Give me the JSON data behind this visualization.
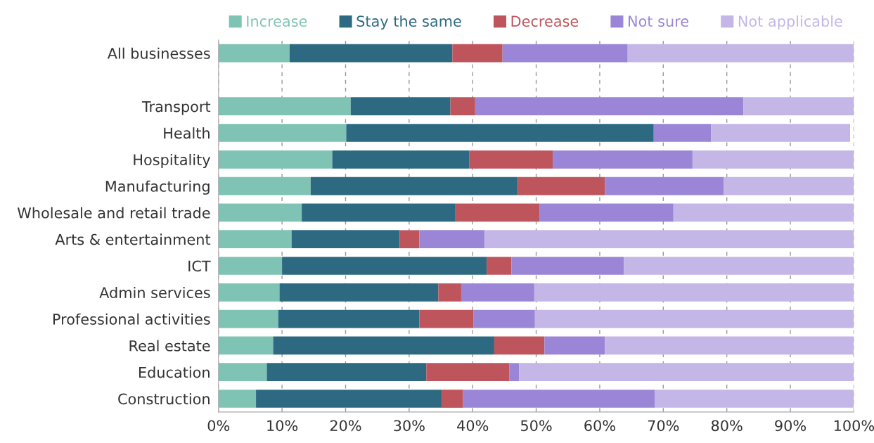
{
  "chart_data": {
    "type": "bar",
    "orientation": "horizontal",
    "stacked": true,
    "categories": [
      "All businesses",
      null,
      "Transport",
      "Health",
      "Hospitality",
      "Manufacturing",
      "Wholesale and retail trade",
      "Arts & entertainment",
      "ICT",
      "Admin services",
      "Professional activities",
      "Real estate",
      "Education",
      "Construction"
    ],
    "series": [
      {
        "name": "Increase",
        "color": "#7fc3b4",
        "values": [
          11.2,
          null,
          20.8,
          20.1,
          17.9,
          14.5,
          13.1,
          11.5,
          10.0,
          9.6,
          9.4,
          8.6,
          7.6,
          5.9
        ]
      },
      {
        "name": "Stay the same",
        "color": "#2d6a82",
        "values": [
          25.6,
          null,
          15.7,
          48.4,
          21.6,
          32.6,
          24.2,
          17.0,
          32.2,
          25.0,
          22.2,
          34.8,
          25.1,
          29.2
        ]
      },
      {
        "name": "Decrease",
        "color": "#bf555c",
        "values": [
          7.9,
          null,
          3.9,
          0,
          13.1,
          13.7,
          13.2,
          3.1,
          3.9,
          3.6,
          8.5,
          7.9,
          13.1,
          3.4
        ]
      },
      {
        "name": "Not sure",
        "color": "#9b85d6",
        "values": [
          19.7,
          null,
          42.2,
          9.0,
          22.0,
          18.7,
          21.1,
          10.3,
          17.7,
          11.5,
          9.7,
          9.5,
          1.5,
          30.2
        ]
      },
      {
        "name": "Not applicable",
        "color": "#c4b6e7",
        "values": [
          35.6,
          null,
          17.4,
          21.9,
          25.4,
          20.5,
          28.4,
          58.1,
          36.2,
          50.3,
          50.2,
          39.2,
          52.7,
          31.3
        ]
      }
    ],
    "xlim": [
      0,
      100
    ],
    "xticks": [
      {
        "value": 0,
        "label": "0%"
      },
      {
        "value": 10,
        "label": "10%"
      },
      {
        "value": 20,
        "label": "20%"
      },
      {
        "value": 30,
        "label": "30%"
      },
      {
        "value": 40,
        "label": "40%"
      },
      {
        "value": 50,
        "label": "50%"
      },
      {
        "value": 60,
        "label": "60%"
      },
      {
        "value": 70,
        "label": "70%"
      },
      {
        "value": 80,
        "label": "80%"
      },
      {
        "value": 90,
        "label": "90%"
      },
      {
        "value": 100,
        "label": "100%"
      }
    ],
    "grid": "x",
    "legend": "top"
  }
}
